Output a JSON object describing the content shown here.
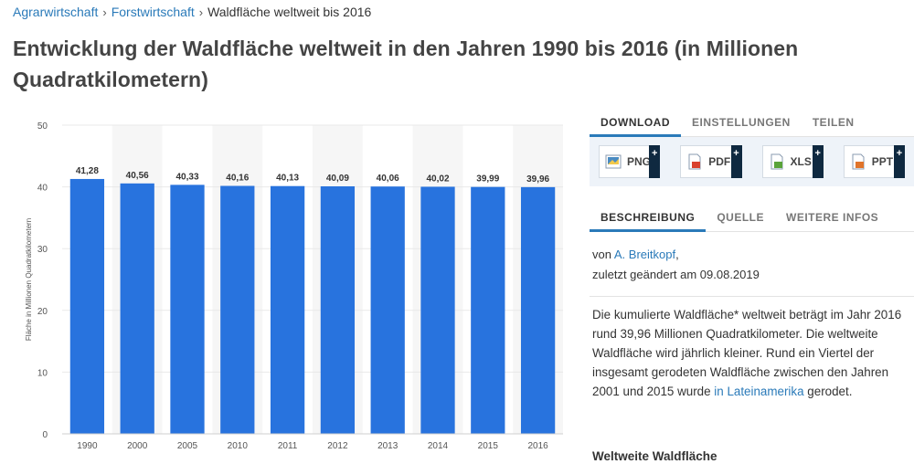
{
  "breadcrumb": {
    "items": [
      "Agrarwirtschaft",
      "Forstwirtschaft"
    ],
    "current": "Waldfläche weltweit bis 2016"
  },
  "title": "Entwicklung der Waldfläche weltweit in den Jahren 1990 bis 2016 (in Millionen Quadratkilometern)",
  "colors": {
    "bar": "#2873de",
    "accent": "#2a7ab9",
    "band": "#f6f6f6",
    "grid": "#e9e9e9",
    "text": "#333333",
    "navy": "#0f2940"
  },
  "chart_data": {
    "type": "bar",
    "title": "",
    "categories": [
      "1990",
      "2000",
      "2005",
      "2010",
      "2011",
      "2012",
      "2013",
      "2014",
      "2015",
      "2016"
    ],
    "values": [
      41.28,
      40.56,
      40.33,
      40.16,
      40.13,
      40.09,
      40.06,
      40.02,
      39.99,
      39.96
    ],
    "value_labels": [
      "41,28",
      "40,56",
      "40,33",
      "40,16",
      "40,13",
      "40,09",
      "40,06",
      "40,02",
      "39,99",
      "39,96"
    ],
    "xlabel": "",
    "ylabel": "Fläche in Millionen Quadratkilometern",
    "ylim": [
      0,
      50
    ],
    "yticks": [
      0,
      10,
      20,
      30,
      40,
      50
    ],
    "grid": true
  },
  "panel": {
    "tabs1": [
      {
        "label": "DOWNLOAD",
        "active": true
      },
      {
        "label": "EINSTELLUNGEN",
        "active": false
      },
      {
        "label": "TEILEN",
        "active": false
      }
    ],
    "downloads": [
      {
        "label": "PNG",
        "icon": "png-file-icon",
        "color": "#4a8bc2"
      },
      {
        "label": "PDF",
        "icon": "pdf-file-icon",
        "color": "#d9412e"
      },
      {
        "label": "XLS",
        "icon": "xls-file-icon",
        "color": "#5aa33a"
      },
      {
        "label": "PPT",
        "icon": "ppt-file-icon",
        "color": "#e0742a"
      }
    ],
    "plus_label": "+",
    "tabs2": [
      {
        "label": "BESCHREIBUNG",
        "active": true
      },
      {
        "label": "QUELLE",
        "active": false
      },
      {
        "label": "WEITERE INFOS",
        "active": false
      }
    ],
    "author_prefix": "von",
    "author": "A. Breitkopf",
    "author_suffix": ",",
    "updated": "zuletzt geändert am 09.08.2019",
    "description_text": "Die kumulierte Waldfläche* weltweit beträgt im Jahr 2016 rund 39,96 Millionen Quadratkilometer. Die weltweite Waldfläche wird jährlich kleiner. Rund ein Viertel der insgesamt gerodeten Waldfläche zwischen den Jahren 2001 und 2015 wurde",
    "description_link": "in Lateinamerika",
    "description_end": "gerodet.",
    "sub_heading": "Weltweite Waldfläche"
  }
}
